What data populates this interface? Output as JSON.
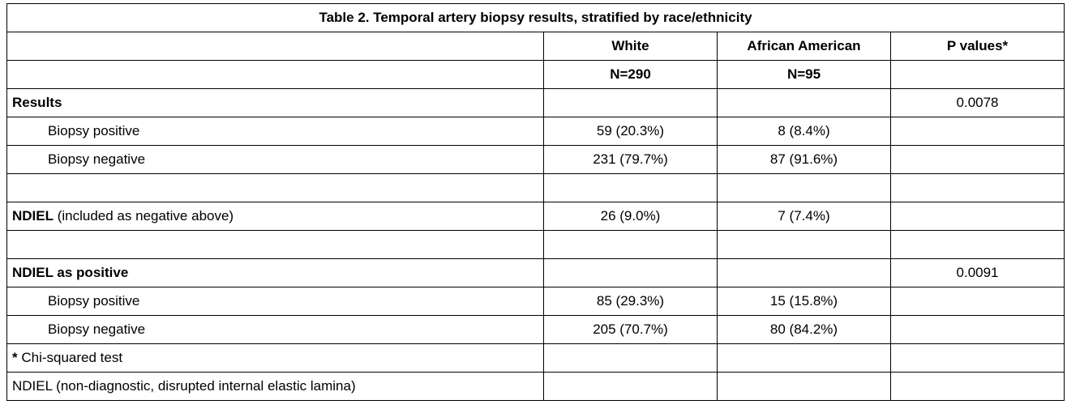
{
  "title": "Table 2. Temporal artery biopsy results, stratified by race/ethnicity",
  "headers": {
    "white": "White",
    "african_american": "African American",
    "p_values": "P values*",
    "white_n": "N=290",
    "aa_n": "N=95"
  },
  "rows": {
    "results": {
      "label": "Results",
      "p": "0.0078"
    },
    "pos1": {
      "label": "Biopsy positive",
      "white": "59 (20.3%)",
      "aa": "8 (8.4%)"
    },
    "neg1": {
      "label": "Biopsy negative",
      "white": "231 (79.7%)",
      "aa": "87 (91.6%)"
    },
    "ndiel": {
      "label_bold": "NDIEL",
      "label_rest": " (included as negative above)",
      "white": "26 (9.0%)",
      "aa": "7 (7.4%)"
    },
    "ndiel_pos": {
      "label": "NDIEL as positive",
      "p": "0.0091"
    },
    "pos2": {
      "label": "Biopsy positive",
      "white": "85 (29.3%)",
      "aa": "15 (15.8%)"
    },
    "neg2": {
      "label": "Biopsy negative",
      "white": "205 (70.7%)",
      "aa": "80 (84.2%)"
    }
  },
  "footnotes": {
    "star": "*",
    "chi": " Chi-squared test",
    "ndiel": "NDIEL (non-diagnostic, disrupted internal elastic lamina)"
  }
}
